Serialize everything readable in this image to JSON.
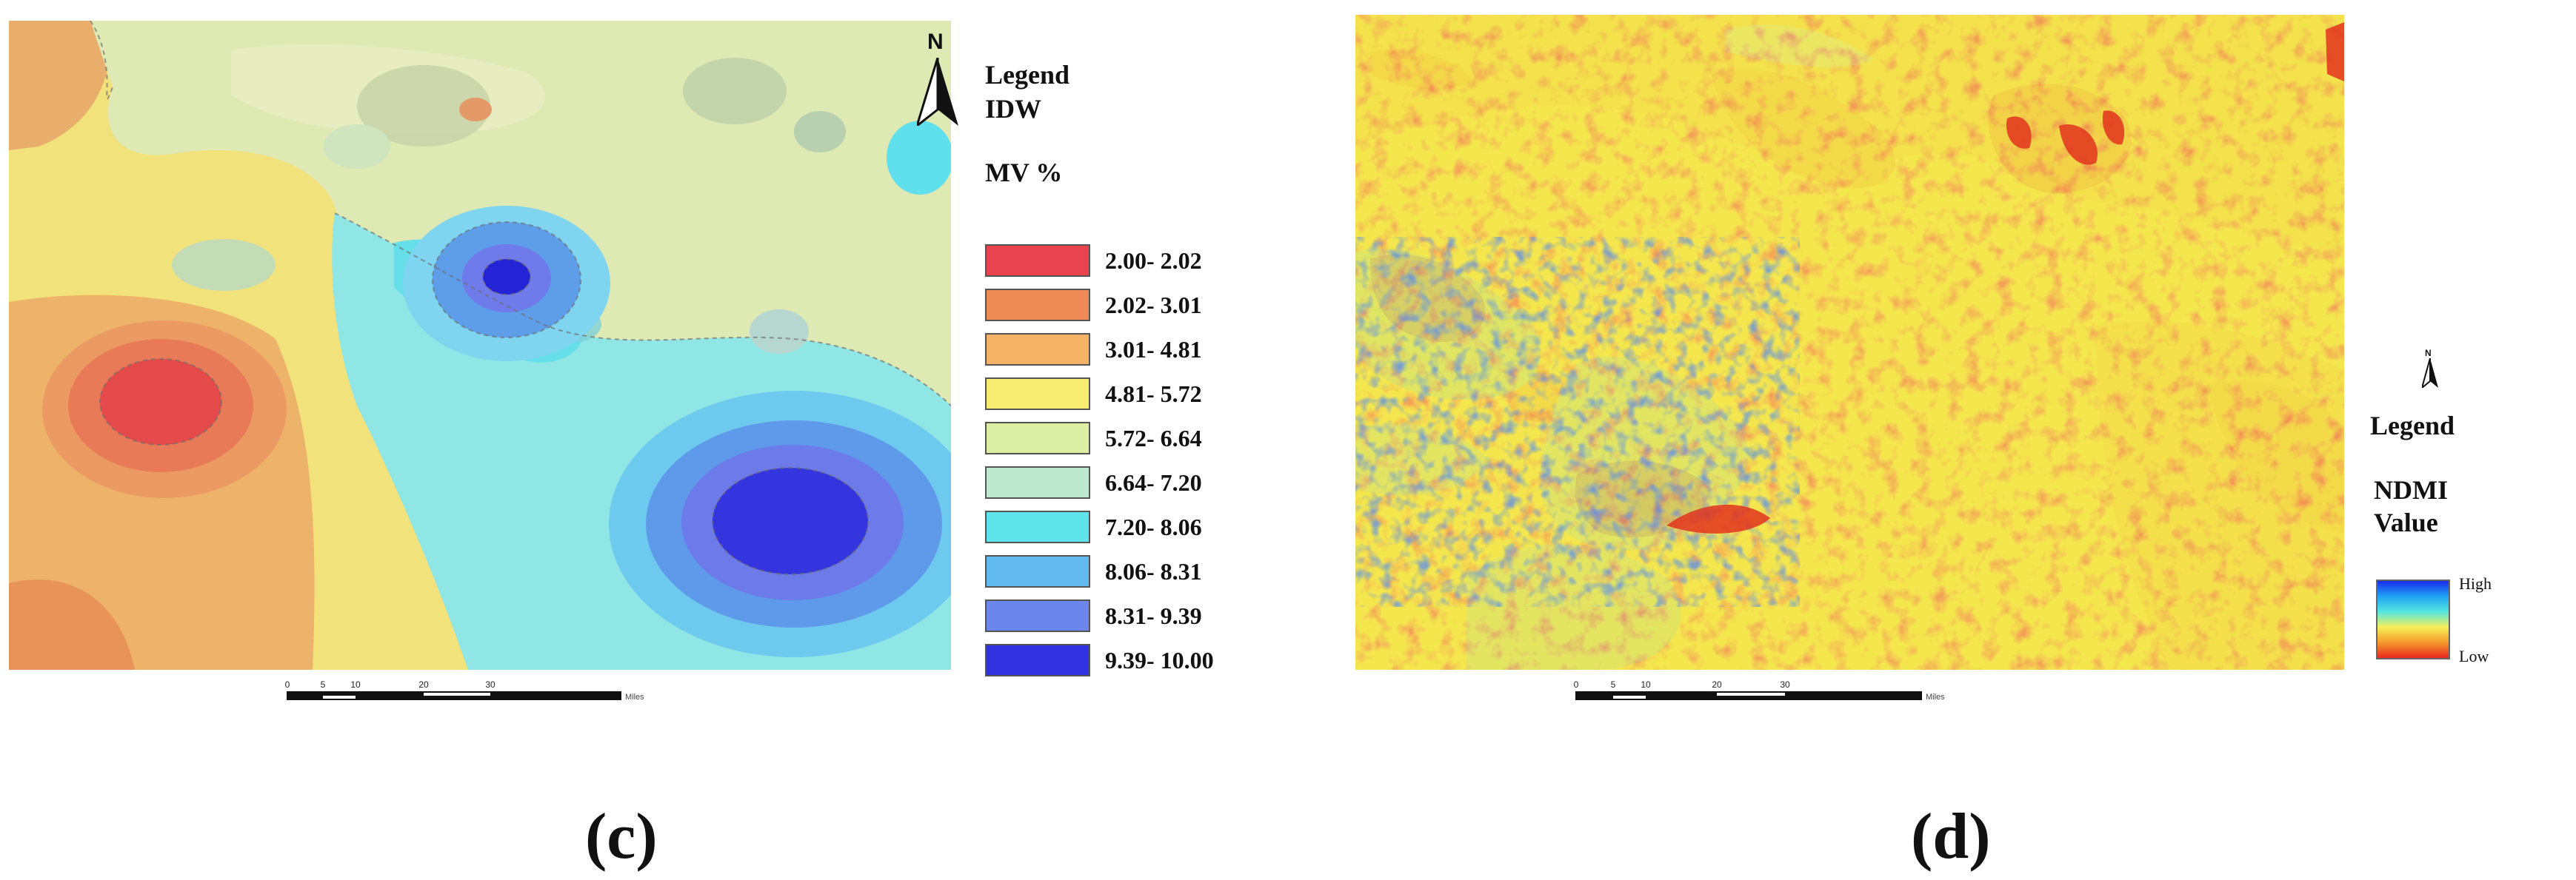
{
  "panel_c": {
    "north_label": "N",
    "legend_title": "Legend",
    "legend_subtitle": "IDW",
    "legend_variable": "MV %",
    "classes": [
      {
        "label": "2.00- 2.02",
        "color": "#e8434f"
      },
      {
        "label": "2.02- 3.01",
        "color": "#ee8a55"
      },
      {
        "label": "3.01- 4.81",
        "color": "#f3b266"
      },
      {
        "label": "4.81- 5.72",
        "color": "#f6ec70"
      },
      {
        "label": "5.72- 6.64",
        "color": "#dbeea4"
      },
      {
        "label": "6.64- 7.20",
        "color": "#bfe9cf"
      },
      {
        "label": "7.20- 8.06",
        "color": "#5fe3ea"
      },
      {
        "label": "8.06- 8.31",
        "color": "#62b9ef"
      },
      {
        "label": "8.31- 9.39",
        "color": "#6c86ec"
      },
      {
        "label": "9.39- 10.00",
        "color": "#3232e0"
      }
    ],
    "scale_ticks": [
      "0",
      "5",
      "10",
      "20",
      "30"
    ],
    "scale_unit": "Miles",
    "caption": "(c)"
  },
  "panel_d": {
    "north_label": "N",
    "legend_title": "Legend",
    "legend_variable_line1": "NDMI",
    "legend_variable_line2": "Value",
    "ramp_high": "High",
    "ramp_low": "Low",
    "ramp_colors": [
      "#1a2cf0",
      "#1fa3f2",
      "#56e6e0",
      "#f5f05a",
      "#f59a2c",
      "#e8281e"
    ],
    "scale_ticks": [
      "0",
      "5",
      "10",
      "20",
      "30"
    ],
    "scale_unit": "Miles",
    "caption": "(d)"
  }
}
